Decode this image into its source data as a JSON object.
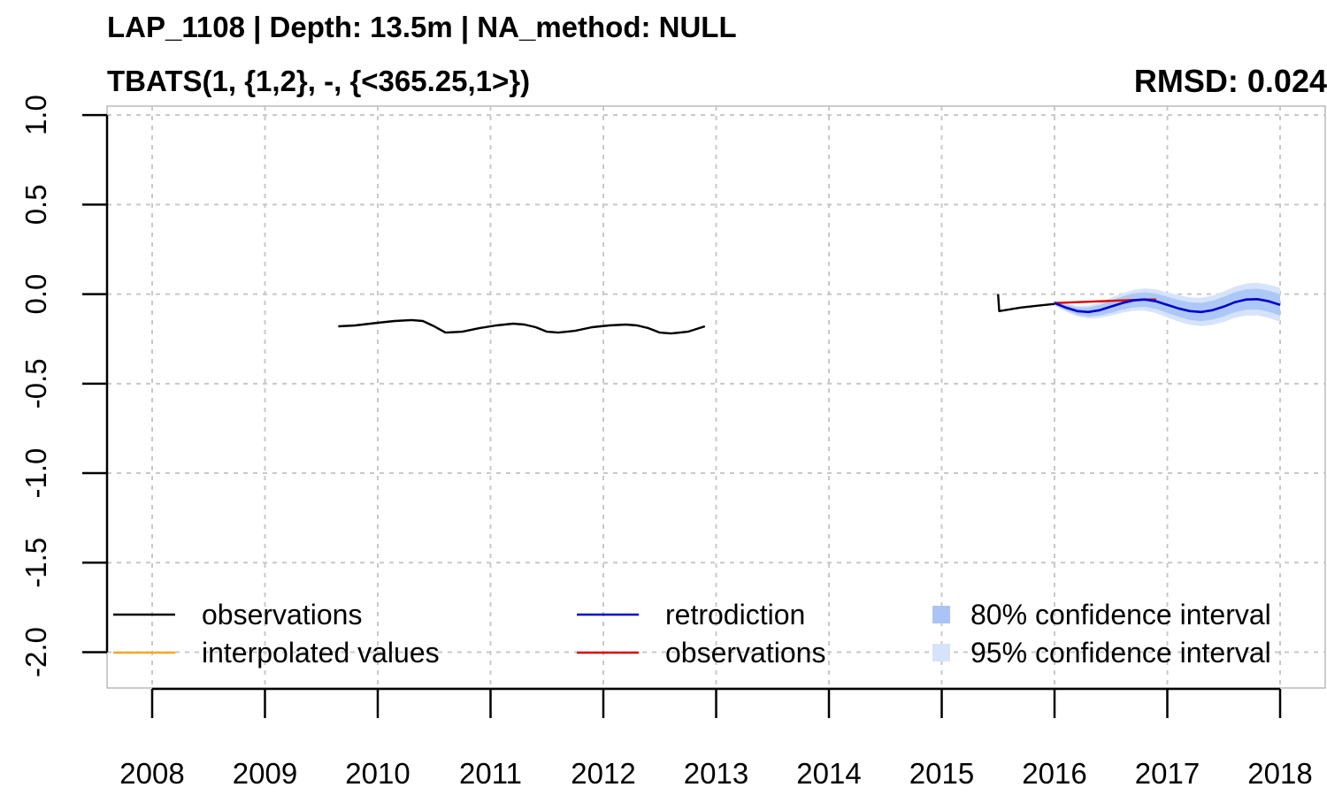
{
  "title_line1": "LAP_1108 | Depth: 13.5m | NA_method: NULL",
  "title_line2": "TBATS(1, {1,2}, -, {<365.25,1>})",
  "rmsd_label": "RMSD: 0.024",
  "colors": {
    "observations": "#000000",
    "interpolated": "#f5a623",
    "retrodiction": "#0000cc",
    "observations_test": "#dd0000",
    "ci80": "#a9c4f5",
    "ci95": "#d6e3fb",
    "grid": "#c8c8c8"
  },
  "chart_data": {
    "type": "line",
    "xlim": [
      2007.6,
      2018.4
    ],
    "ylim": [
      -2.2,
      1.05
    ],
    "x_ticks": [
      2008,
      2009,
      2010,
      2011,
      2012,
      2013,
      2014,
      2015,
      2016,
      2017,
      2018
    ],
    "x_tick_labels": [
      "2008",
      "2009",
      "2010",
      "2011",
      "2012",
      "2013",
      "2014",
      "2015",
      "2016",
      "2017",
      "2018"
    ],
    "y_ticks": [
      1.0,
      0.5,
      0.0,
      -0.5,
      -1.0,
      -1.5,
      -2.0
    ],
    "y_tick_labels": [
      "1.0",
      "0.5",
      "0.0",
      "-0.5",
      "-1.0",
      "-1.5",
      "-2.0"
    ],
    "grid": true,
    "legend_position": "bottom",
    "legend": [
      {
        "label": "observations",
        "kind": "line",
        "color_key": "observations"
      },
      {
        "label": "interpolated values",
        "kind": "line",
        "color_key": "interpolated"
      },
      {
        "label": "retrodiction",
        "kind": "line",
        "color_key": "retrodiction"
      },
      {
        "label": "observations",
        "kind": "line",
        "color_key": "observations_test"
      },
      {
        "label": "80% confidence interval",
        "kind": "box",
        "color_key": "ci80"
      },
      {
        "label": "95% confidence interval",
        "kind": "box",
        "color_key": "ci95"
      }
    ],
    "series": [
      {
        "key": "observations",
        "x": [
          2009.65,
          2009.8,
          2010.0,
          2010.15,
          2010.3,
          2010.4,
          2010.5,
          2010.6,
          2010.75,
          2010.9,
          2011.05,
          2011.2,
          2011.3,
          2011.4,
          2011.5,
          2011.6,
          2011.75,
          2011.9,
          2012.05,
          2012.2,
          2012.3,
          2012.4,
          2012.5,
          2012.6,
          2012.75,
          2012.9
        ],
        "y": [
          -0.18,
          -0.175,
          -0.16,
          -0.15,
          -0.145,
          -0.15,
          -0.18,
          -0.215,
          -0.21,
          -0.19,
          -0.175,
          -0.165,
          -0.17,
          -0.185,
          -0.21,
          -0.215,
          -0.205,
          -0.185,
          -0.175,
          -0.17,
          -0.175,
          -0.19,
          -0.215,
          -0.22,
          -0.21,
          -0.18
        ]
      },
      {
        "key": "observations",
        "x": [
          2015.5,
          2015.51,
          2015.7,
          2015.85,
          2016.0
        ],
        "y": [
          0.0,
          -0.095,
          -0.075,
          -0.065,
          -0.055
        ]
      },
      {
        "key": "observations_test",
        "x": [
          2016.0,
          2016.2,
          2016.4,
          2016.6,
          2016.8,
          2016.9
        ],
        "y": [
          -0.05,
          -0.045,
          -0.04,
          -0.035,
          -0.03,
          -0.03
        ]
      },
      {
        "key": "retrodiction",
        "x": [
          2016.0,
          2016.1,
          2016.2,
          2016.3,
          2016.4,
          2016.5,
          2016.6,
          2016.7,
          2016.8,
          2016.9,
          2017.0,
          2017.1,
          2017.2,
          2017.3,
          2017.4,
          2017.5,
          2017.6,
          2017.7,
          2017.8,
          2017.9,
          2018.0
        ],
        "y": [
          -0.05,
          -0.075,
          -0.095,
          -0.1,
          -0.09,
          -0.07,
          -0.05,
          -0.035,
          -0.03,
          -0.04,
          -0.06,
          -0.08,
          -0.095,
          -0.1,
          -0.09,
          -0.07,
          -0.045,
          -0.03,
          -0.028,
          -0.04,
          -0.06
        ]
      }
    ],
    "ci80_halfwidth": {
      "x": [
        2016.0,
        2016.5,
        2017.0,
        2017.5,
        2018.0
      ],
      "y": [
        0.01,
        0.035,
        0.045,
        0.055,
        0.06
      ]
    },
    "ci95_halfwidth": {
      "x": [
        2016.0,
        2016.5,
        2017.0,
        2017.5,
        2018.0
      ],
      "y": [
        0.015,
        0.05,
        0.07,
        0.085,
        0.095
      ]
    }
  }
}
